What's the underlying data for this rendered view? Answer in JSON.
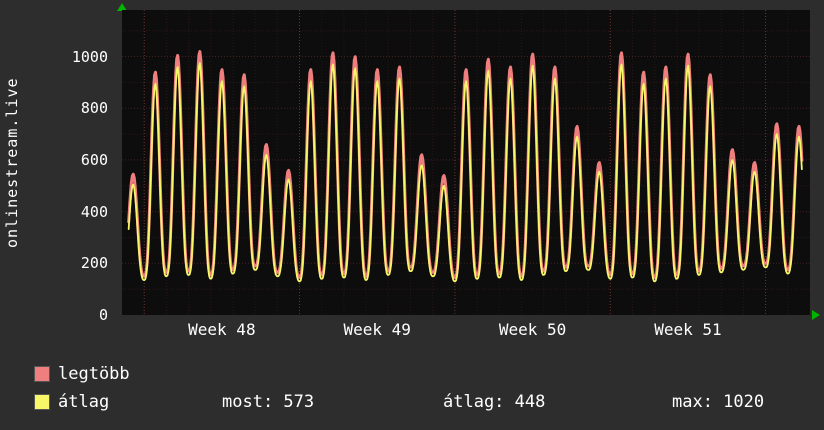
{
  "title": "onlinestream.live",
  "colors": {
    "background": "#2d2d2d",
    "plot_bg": "#0d0d0d",
    "grid": "#c84646",
    "grid_week": "#e05555",
    "max_line": "#ef7e7e",
    "avg_line": "#f7f768",
    "text": "#ffffff",
    "arrow": "#00b400"
  },
  "y_axis": {
    "ticks": [
      0,
      200,
      400,
      600,
      800,
      1000
    ]
  },
  "x_axis": {
    "labels": [
      "Week 48",
      "Week 49",
      "Week 50",
      "Week 51"
    ]
  },
  "legend": {
    "max_series": "legtöbb",
    "avg_series": "átlag",
    "most_text": "most: 573",
    "avg_text": "átlag: 448",
    "max_text": "max: 1020"
  },
  "chart_data": {
    "type": "line",
    "title": "onlinestream.live listener count, weekly view",
    "x_unit": "day",
    "days": 31,
    "week_starts": [
      1,
      8,
      15,
      22,
      29
    ],
    "week_labels": [
      "Week 48",
      "Week 49",
      "Week 50",
      "Week 51"
    ],
    "ylim": [
      0,
      1180
    ],
    "grid_step": 100,
    "series": [
      {
        "name": "legtöbb",
        "color": "#ef7e7e",
        "daily_peaks": [
          545,
          940,
          1005,
          1020,
          950,
          930,
          660,
          560,
          950,
          1015,
          1000,
          950,
          960,
          620,
          540,
          950,
          990,
          960,
          1010,
          960,
          730,
          590,
          1015,
          940,
          960,
          1010,
          930,
          640,
          590,
          740,
          730
        ],
        "daily_troughs": [
          155,
          150,
          165,
          170,
          155,
          175,
          190,
          165,
          145,
          155,
          160,
          150,
          170,
          185,
          165,
          145,
          155,
          160,
          150,
          170,
          185,
          190,
          155,
          160,
          145,
          155,
          170,
          180,
          190,
          200,
          175
        ]
      },
      {
        "name": "átlag",
        "color": "#f7f768",
        "daily_peaks": [
          505,
          895,
          960,
          975,
          905,
          885,
          620,
          525,
          905,
          970,
          955,
          905,
          915,
          580,
          500,
          905,
          945,
          915,
          965,
          915,
          690,
          555,
          970,
          895,
          915,
          965,
          885,
          600,
          555,
          700,
          690
        ],
        "daily_troughs": [
          140,
          135,
          150,
          155,
          140,
          160,
          175,
          150,
          130,
          140,
          145,
          135,
          155,
          170,
          150,
          130,
          140,
          145,
          135,
          155,
          170,
          175,
          140,
          145,
          130,
          140,
          155,
          165,
          175,
          185,
          160
        ]
      }
    ],
    "summary": {
      "most": 573,
      "atlag": 448,
      "max": 1020
    }
  }
}
